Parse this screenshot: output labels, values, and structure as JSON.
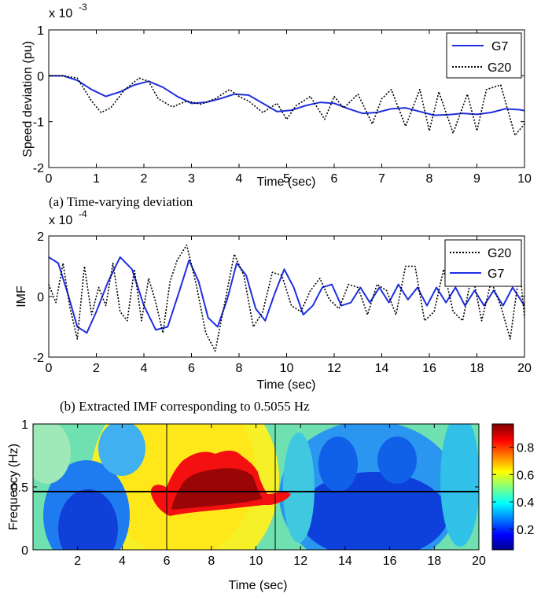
{
  "colors": {
    "g7": "#1f2fe0",
    "g20": "#000000",
    "overlay_line": "#000000"
  },
  "chart_data": [
    {
      "type": "line",
      "caption": "(a) Time-varying deviation",
      "xlabel": "Time (sec)",
      "ylabel": "Speed deviation (pu)",
      "y_exponent": "x 10",
      "y_exponent_power": "-3",
      "xlim": [
        0,
        10
      ],
      "ylim": [
        -2,
        1
      ],
      "xticks": [
        "0",
        "1",
        "2",
        "3",
        "4",
        "5",
        "6",
        "7",
        "8",
        "9",
        "10"
      ],
      "yticks": [
        "1",
        "0",
        "-1",
        "-2"
      ],
      "legend": {
        "position": "top-right",
        "entries": [
          "G7",
          "G20"
        ]
      },
      "series": [
        {
          "name": "G7",
          "style": "solid",
          "x": [
            0,
            0.3,
            0.6,
            0.9,
            1.2,
            1.5,
            1.8,
            2.1,
            2.4,
            2.7,
            3.0,
            3.3,
            3.6,
            3.9,
            4.2,
            4.5,
            4.8,
            5.1,
            5.4,
            5.7,
            6.0,
            6.3,
            6.6,
            6.9,
            7.2,
            7.5,
            7.8,
            8.1,
            8.4,
            8.7,
            9.0,
            9.3,
            9.6,
            9.9,
            10.0
          ],
          "values": [
            0,
            0,
            -0.1,
            -0.3,
            -0.45,
            -0.35,
            -0.2,
            -0.12,
            -0.25,
            -0.45,
            -0.6,
            -0.58,
            -0.5,
            -0.4,
            -0.42,
            -0.6,
            -0.78,
            -0.75,
            -0.65,
            -0.58,
            -0.6,
            -0.72,
            -0.82,
            -0.8,
            -0.72,
            -0.7,
            -0.78,
            -0.86,
            -0.85,
            -0.82,
            -0.84,
            -0.8,
            -0.72,
            -0.74,
            -0.76
          ]
        },
        {
          "name": "G20",
          "style": "dotted",
          "x": [
            0,
            0.3,
            0.6,
            0.9,
            1.1,
            1.3,
            1.6,
            1.9,
            2.1,
            2.3,
            2.6,
            2.9,
            3.2,
            3.5,
            3.8,
            4.0,
            4.2,
            4.5,
            4.8,
            5.0,
            5.2,
            5.5,
            5.8,
            6.0,
            6.2,
            6.5,
            6.8,
            7.0,
            7.2,
            7.5,
            7.8,
            8.0,
            8.2,
            8.5,
            8.8,
            9.0,
            9.2,
            9.5,
            9.8,
            10.0
          ],
          "values": [
            0,
            0,
            -0.05,
            -0.55,
            -0.8,
            -0.7,
            -0.3,
            -0.05,
            -0.12,
            -0.5,
            -0.68,
            -0.55,
            -0.62,
            -0.5,
            -0.3,
            -0.45,
            -0.55,
            -0.8,
            -0.6,
            -0.95,
            -0.65,
            -0.45,
            -0.95,
            -0.45,
            -0.7,
            -0.4,
            -1.05,
            -0.5,
            -0.3,
            -1.1,
            -0.3,
            -1.2,
            -0.35,
            -1.25,
            -0.4,
            -1.2,
            -0.3,
            -0.2,
            -1.3,
            -1.05
          ]
        }
      ]
    },
    {
      "type": "line",
      "caption": "(b) Extracted IMF corresponding to 0.5055 Hz",
      "xlabel": "Time (sec)",
      "ylabel": "IMF",
      "y_exponent": "x 10",
      "y_exponent_power": "-4",
      "xlim": [
        0,
        20
      ],
      "ylim": [
        -2,
        2
      ],
      "xticks": [
        "0",
        "2",
        "4",
        "6",
        "8",
        "10",
        "12",
        "14",
        "16",
        "18",
        "20"
      ],
      "yticks": [
        "2",
        "0",
        "-2"
      ],
      "legend": {
        "position": "top-right",
        "entries": [
          "G20",
          "G7"
        ]
      },
      "series": [
        {
          "name": "G7",
          "style": "solid",
          "x": [
            0,
            0.4,
            0.8,
            1.2,
            1.6,
            2.0,
            2.5,
            3.0,
            3.5,
            4.0,
            4.5,
            5.0,
            5.5,
            5.9,
            6.3,
            6.7,
            7.1,
            7.5,
            7.9,
            8.3,
            8.7,
            9.1,
            9.5,
            9.9,
            10.3,
            10.7,
            11.1,
            11.5,
            11.9,
            12.3,
            12.7,
            13.1,
            13.5,
            13.9,
            14.3,
            14.7,
            15.1,
            15.5,
            15.9,
            16.3,
            16.7,
            17.1,
            17.5,
            17.9,
            18.3,
            18.7,
            19.1,
            19.5,
            20.0
          ],
          "values": [
            1.3,
            1.1,
            0.1,
            -1.0,
            -1.2,
            -0.5,
            0.5,
            1.3,
            0.9,
            -0.3,
            -1.1,
            -1.0,
            0.2,
            1.2,
            0.5,
            -0.7,
            -1.0,
            -0.1,
            1.1,
            0.7,
            -0.4,
            -0.8,
            0.1,
            0.9,
            0.3,
            -0.6,
            -0.3,
            0.3,
            0.4,
            -0.3,
            -0.2,
            0.3,
            -0.2,
            0.3,
            -0.2,
            0.4,
            -0.1,
            0.3,
            -0.3,
            0.3,
            -0.2,
            0.3,
            -0.3,
            0.2,
            -0.3,
            0.2,
            -0.3,
            0.3,
            -0.3
          ]
        },
        {
          "name": "G20",
          "style": "dotted",
          "x": [
            0,
            0.3,
            0.6,
            0.9,
            1.2,
            1.5,
            1.8,
            2.1,
            2.4,
            2.7,
            3.0,
            3.3,
            3.6,
            3.9,
            4.2,
            4.5,
            4.8,
            5.1,
            5.4,
            5.8,
            6.2,
            6.6,
            7.0,
            7.4,
            7.8,
            8.2,
            8.6,
            9.0,
            9.4,
            9.8,
            10.2,
            10.6,
            11.0,
            11.4,
            11.8,
            12.2,
            12.6,
            13.0,
            13.4,
            13.8,
            14.2,
            14.6,
            15.0,
            15.4,
            15.8,
            16.2,
            16.6,
            17.0,
            17.4,
            17.8,
            18.2,
            18.6,
            19.0,
            19.4,
            19.8,
            20.0
          ],
          "values": [
            0.4,
            -0.2,
            1.1,
            -0.4,
            -1.4,
            1.0,
            -0.6,
            0.3,
            -0.3,
            1.1,
            -0.5,
            -0.8,
            0.9,
            -0.8,
            0.6,
            -0.2,
            -1.2,
            0.5,
            1.2,
            1.7,
            0.4,
            -1.2,
            -1.8,
            -0.2,
            1.4,
            0.7,
            -1.0,
            -0.5,
            0.8,
            0.7,
            -0.3,
            -0.5,
            0.2,
            0.6,
            -0.1,
            -0.4,
            0.4,
            0.3,
            -0.6,
            0.4,
            0.2,
            -0.6,
            1.0,
            1.0,
            -0.8,
            -0.5,
            0.9,
            -0.5,
            -0.8,
            0.8,
            -0.8,
            0.5,
            -0.3,
            -1.4,
            0.9,
            -0.7
          ]
        }
      ]
    },
    {
      "type": "heatmap",
      "xlabel": "Time (sec)",
      "ylabel": "Frequency (Hz)",
      "xlim": [
        0,
        20
      ],
      "ylim": [
        0,
        1
      ],
      "xticks": [
        "2",
        "4",
        "6",
        "8",
        "10",
        "12",
        "14",
        "16",
        "18",
        "20"
      ],
      "yticks": [
        "1",
        "0.5",
        "0"
      ],
      "colorbar": {
        "ticks": [
          "0.8",
          "0.6",
          "0.4",
          "0.2"
        ],
        "range": [
          0.05,
          0.97
        ]
      },
      "hline_frequency": 0.5,
      "vlines_time": [
        5.4,
        10.4
      ]
    }
  ]
}
